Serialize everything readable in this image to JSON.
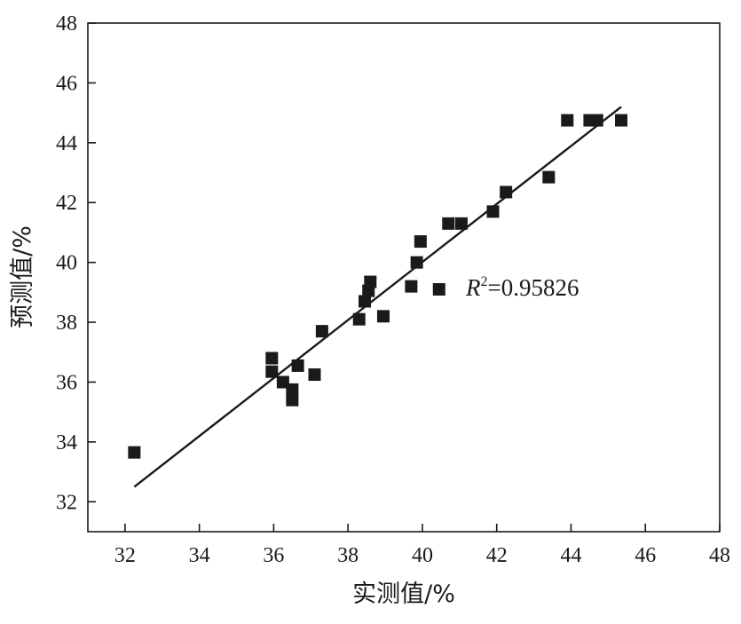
{
  "chart_data": {
    "type": "scatter",
    "xlabel": "实测值/%",
    "ylabel": "预测值/%",
    "xlim": [
      31,
      48
    ],
    "ylim": [
      31,
      48
    ],
    "xticks": [
      "32",
      "34",
      "36",
      "38",
      "40",
      "42",
      "44",
      "46",
      "48"
    ],
    "yticks": [
      "32",
      "34",
      "36",
      "38",
      "40",
      "42",
      "44",
      "46",
      "48"
    ],
    "grid": false,
    "annotation": {
      "symbol": "R",
      "exponent": "2",
      "value": "=0.95826"
    },
    "fit_line": {
      "x": [
        32.25,
        45.35
      ],
      "y": [
        32.5,
        45.2
      ]
    },
    "points": [
      {
        "x": 32.25,
        "y": 33.65
      },
      {
        "x": 35.95,
        "y": 36.8
      },
      {
        "x": 35.95,
        "y": 36.35
      },
      {
        "x": 36.25,
        "y": 36.0
      },
      {
        "x": 36.5,
        "y": 35.75
      },
      {
        "x": 36.5,
        "y": 35.4
      },
      {
        "x": 36.65,
        "y": 36.55
      },
      {
        "x": 37.1,
        "y": 36.25
      },
      {
        "x": 37.3,
        "y": 37.7
      },
      {
        "x": 38.3,
        "y": 38.1
      },
      {
        "x": 38.45,
        "y": 38.7
      },
      {
        "x": 38.55,
        "y": 39.05
      },
      {
        "x": 38.6,
        "y": 39.35
      },
      {
        "x": 38.95,
        "y": 38.2
      },
      {
        "x": 39.7,
        "y": 39.2
      },
      {
        "x": 39.85,
        "y": 40.0
      },
      {
        "x": 39.95,
        "y": 40.7
      },
      {
        "x": 40.45,
        "y": 39.1
      },
      {
        "x": 40.7,
        "y": 41.3
      },
      {
        "x": 41.05,
        "y": 41.3
      },
      {
        "x": 41.9,
        "y": 41.7
      },
      {
        "x": 42.25,
        "y": 42.35
      },
      {
        "x": 43.4,
        "y": 42.85
      },
      {
        "x": 43.9,
        "y": 44.75
      },
      {
        "x": 44.5,
        "y": 44.75
      },
      {
        "x": 44.7,
        "y": 44.75
      },
      {
        "x": 45.35,
        "y": 44.75
      }
    ]
  }
}
